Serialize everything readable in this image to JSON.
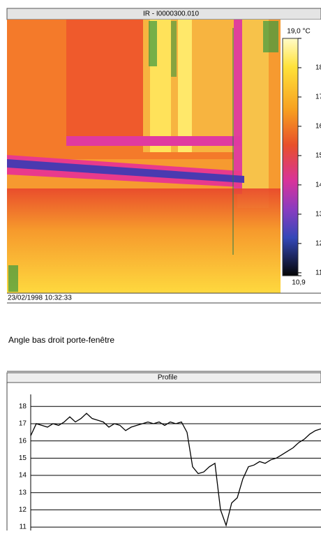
{
  "window_title": "IR - I0000300.010",
  "colorbar": {
    "lim": [
      10.9,
      19.0
    ],
    "ticks": [
      {
        "value": 19.0,
        "label": "19,0 °C"
      },
      18,
      17,
      16,
      15,
      14,
      13,
      12,
      11,
      {
        "value": 10.9,
        "label": "10,9"
      }
    ]
  },
  "timestamp": "23/02/1998 10:32:33",
  "comment": "Angle bas droit porte-fenêtre",
  "profile": {
    "type": "line",
    "title": "Profile",
    "color": "#000000",
    "values": [
      16.3,
      17.0,
      16.9,
      16.8,
      17.0,
      16.9,
      17.1,
      17.4,
      17.1,
      17.3,
      17.6,
      17.3,
      17.2,
      17.1,
      16.8,
      17.0,
      16.9,
      16.6,
      16.8,
      16.9,
      17.0,
      17.1,
      17.0,
      17.1,
      16.9,
      17.1,
      17.0,
      17.1,
      16.5,
      14.5,
      14.1,
      14.2,
      14.5,
      14.7,
      12.0,
      11.1,
      12.4,
      12.7,
      13.8,
      14.5,
      14.6,
      14.8,
      14.7,
      14.9,
      15.0,
      15.2,
      15.4,
      15.6,
      15.9,
      16.1,
      16.4,
      16.6,
      16.7
    ],
    "ylim": [
      10.8,
      18.7
    ],
    "yticks": [
      18,
      17,
      16,
      15,
      14,
      13,
      12,
      11
    ],
    "grid": true
  }
}
